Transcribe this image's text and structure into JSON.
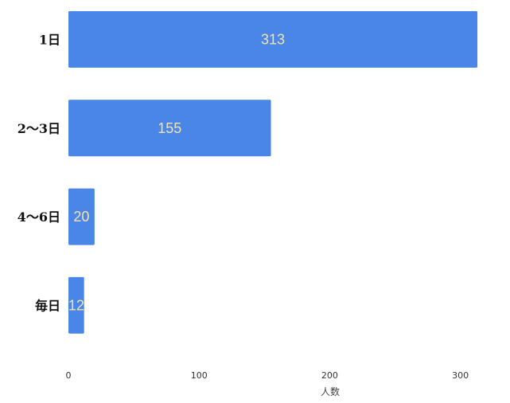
{
  "chart_data": {
    "type": "bar",
    "orientation": "horizontal",
    "categories": [
      "1日",
      "2～3日",
      "4～6日",
      "毎日"
    ],
    "values": [
      313,
      155,
      20,
      12
    ],
    "data_labels": [
      "313",
      "155",
      "20",
      "12"
    ],
    "xlabel": "人数",
    "ylabel": "",
    "xlim": [
      0,
      313
    ],
    "xticks": [
      0,
      100,
      200,
      300
    ],
    "grid": false,
    "colors": {
      "bar": "#4a86e8",
      "data_label": "#f4e2b0"
    }
  }
}
